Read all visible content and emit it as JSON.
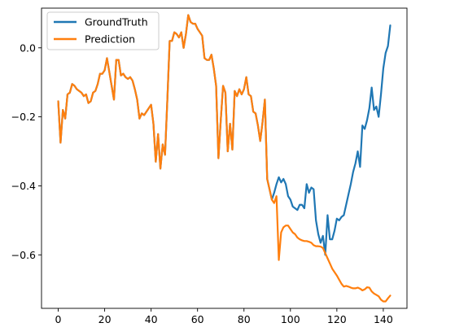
{
  "chart_data": {
    "type": "line",
    "xlim": [
      -7.2,
      150.2
    ],
    "ylim": [
      -0.755,
      0.115
    ],
    "x_ticks": [
      0,
      20,
      40,
      60,
      80,
      100,
      120,
      140
    ],
    "y_ticks": [
      -0.6,
      -0.4,
      -0.2,
      0.0
    ],
    "x_tick_labels": [
      "0",
      "20",
      "40",
      "60",
      "80",
      "100",
      "120",
      "140"
    ],
    "y_tick_labels": [
      "−0.6",
      "−0.4",
      "−0.2",
      "0.0"
    ],
    "grid": false,
    "legend_position": "top-left",
    "series": [
      {
        "name": "GroundTruth",
        "color": "#1f77b4",
        "x": [
          0,
          1,
          2,
          3,
          4,
          5,
          6,
          7,
          8,
          9,
          10,
          11,
          12,
          13,
          14,
          15,
          16,
          17,
          18,
          19,
          20,
          21,
          22,
          23,
          24,
          25,
          26,
          27,
          28,
          29,
          30,
          31,
          32,
          33,
          34,
          35,
          36,
          37,
          38,
          39,
          40,
          41,
          42,
          43,
          44,
          45,
          46,
          47,
          48,
          49,
          50,
          51,
          52,
          53,
          54,
          55,
          56,
          57,
          58,
          59,
          60,
          61,
          62,
          63,
          64,
          65,
          66,
          67,
          68,
          69,
          70,
          71,
          72,
          73,
          74,
          75,
          76,
          77,
          78,
          79,
          80,
          81,
          82,
          83,
          84,
          85,
          86,
          87,
          88,
          89,
          90,
          91,
          92,
          93,
          94,
          95,
          96,
          97,
          98,
          99,
          100,
          101,
          102,
          103,
          104,
          105,
          106,
          107,
          108,
          109,
          110,
          111,
          112,
          113,
          114,
          115,
          116,
          117,
          118,
          119,
          120,
          121,
          122,
          123,
          124,
          125,
          126,
          127,
          128,
          129,
          130,
          131,
          132,
          133,
          134,
          135,
          136,
          137,
          138,
          139,
          140,
          141,
          142,
          143
        ],
        "values": [
          -0.155,
          -0.275,
          -0.18,
          -0.205,
          -0.135,
          -0.13,
          -0.105,
          -0.11,
          -0.12,
          -0.125,
          -0.13,
          -0.14,
          -0.135,
          -0.16,
          -0.155,
          -0.13,
          -0.125,
          -0.105,
          -0.075,
          -0.075,
          -0.065,
          -0.03,
          -0.07,
          -0.11,
          -0.15,
          -0.035,
          -0.035,
          -0.08,
          -0.075,
          -0.085,
          -0.09,
          -0.085,
          -0.095,
          -0.12,
          -0.15,
          -0.205,
          -0.19,
          -0.195,
          -0.185,
          -0.175,
          -0.165,
          -0.22,
          -0.33,
          -0.25,
          -0.35,
          -0.28,
          -0.31,
          -0.15,
          0.02,
          0.02,
          0.045,
          0.04,
          0.03,
          0.045,
          0.0,
          0.04,
          0.095,
          0.075,
          0.07,
          0.07,
          0.055,
          0.045,
          0.035,
          -0.03,
          -0.035,
          -0.035,
          -0.02,
          -0.06,
          -0.11,
          -0.32,
          -0.21,
          -0.11,
          -0.13,
          -0.3,
          -0.22,
          -0.295,
          -0.125,
          -0.14,
          -0.12,
          -0.135,
          -0.12,
          -0.085,
          -0.135,
          -0.14,
          -0.185,
          -0.19,
          -0.225,
          -0.27,
          -0.215,
          -0.15,
          -0.38,
          -0.41,
          -0.44,
          -0.42,
          -0.395,
          -0.375,
          -0.39,
          -0.38,
          -0.395,
          -0.43,
          -0.44,
          -0.46,
          -0.465,
          -0.47,
          -0.455,
          -0.455,
          -0.465,
          -0.395,
          -0.42,
          -0.405,
          -0.41,
          -0.5,
          -0.54,
          -0.565,
          -0.545,
          -0.6,
          -0.485,
          -0.555,
          -0.555,
          -0.53,
          -0.495,
          -0.5,
          -0.49,
          -0.485,
          -0.455,
          -0.425,
          -0.395,
          -0.36,
          -0.335,
          -0.3,
          -0.345,
          -0.225,
          -0.235,
          -0.21,
          -0.175,
          -0.115,
          -0.18,
          -0.17,
          -0.2,
          -0.135,
          -0.06,
          -0.015,
          0.005,
          0.065
        ]
      },
      {
        "name": "Prediction",
        "color": "#ff7f0e",
        "x": [
          0,
          1,
          2,
          3,
          4,
          5,
          6,
          7,
          8,
          9,
          10,
          11,
          12,
          13,
          14,
          15,
          16,
          17,
          18,
          19,
          20,
          21,
          22,
          23,
          24,
          25,
          26,
          27,
          28,
          29,
          30,
          31,
          32,
          33,
          34,
          35,
          36,
          37,
          38,
          39,
          40,
          41,
          42,
          43,
          44,
          45,
          46,
          47,
          48,
          49,
          50,
          51,
          52,
          53,
          54,
          55,
          56,
          57,
          58,
          59,
          60,
          61,
          62,
          63,
          64,
          65,
          66,
          67,
          68,
          69,
          70,
          71,
          72,
          73,
          74,
          75,
          76,
          77,
          78,
          79,
          80,
          81,
          82,
          83,
          84,
          85,
          86,
          87,
          88,
          89,
          90,
          91,
          92,
          93,
          94,
          95,
          96,
          97,
          98,
          99,
          100,
          101,
          102,
          103,
          104,
          105,
          106,
          107,
          108,
          109,
          110,
          111,
          112,
          113,
          114,
          115,
          116,
          117,
          118,
          119,
          120,
          121,
          122,
          123,
          124,
          125,
          126,
          127,
          128,
          129,
          130,
          131,
          132,
          133,
          134,
          135,
          136,
          137,
          138,
          139,
          140,
          141,
          142,
          143
        ],
        "values": [
          -0.155,
          -0.275,
          -0.18,
          -0.205,
          -0.135,
          -0.13,
          -0.105,
          -0.11,
          -0.12,
          -0.125,
          -0.13,
          -0.14,
          -0.135,
          -0.16,
          -0.155,
          -0.13,
          -0.125,
          -0.105,
          -0.075,
          -0.075,
          -0.065,
          -0.03,
          -0.07,
          -0.11,
          -0.15,
          -0.035,
          -0.035,
          -0.08,
          -0.075,
          -0.085,
          -0.09,
          -0.085,
          -0.095,
          -0.12,
          -0.15,
          -0.205,
          -0.19,
          -0.195,
          -0.185,
          -0.175,
          -0.165,
          -0.22,
          -0.33,
          -0.25,
          -0.35,
          -0.28,
          -0.31,
          -0.15,
          0.02,
          0.02,
          0.045,
          0.04,
          0.03,
          0.045,
          0.0,
          0.04,
          0.095,
          0.075,
          0.07,
          0.07,
          0.055,
          0.045,
          0.035,
          -0.03,
          -0.035,
          -0.035,
          -0.02,
          -0.06,
          -0.11,
          -0.32,
          -0.21,
          -0.11,
          -0.13,
          -0.3,
          -0.22,
          -0.295,
          -0.125,
          -0.14,
          -0.12,
          -0.135,
          -0.12,
          -0.085,
          -0.135,
          -0.14,
          -0.185,
          -0.19,
          -0.225,
          -0.27,
          -0.215,
          -0.15,
          -0.38,
          -0.41,
          -0.44,
          -0.45,
          -0.43,
          -0.615,
          -0.535,
          -0.52,
          -0.515,
          -0.515,
          -0.525,
          -0.535,
          -0.54,
          -0.55,
          -0.555,
          -0.558,
          -0.56,
          -0.56,
          -0.562,
          -0.565,
          -0.572,
          -0.575,
          -0.575,
          -0.576,
          -0.58,
          -0.595,
          -0.61,
          -0.625,
          -0.64,
          -0.65,
          -0.66,
          -0.672,
          -0.684,
          -0.692,
          -0.69,
          -0.692,
          -0.695,
          -0.697,
          -0.697,
          -0.695,
          -0.698,
          -0.703,
          -0.7,
          -0.694,
          -0.695,
          -0.706,
          -0.712,
          -0.716,
          -0.72,
          -0.73,
          -0.735,
          -0.735,
          -0.726,
          -0.718
        ]
      }
    ]
  }
}
